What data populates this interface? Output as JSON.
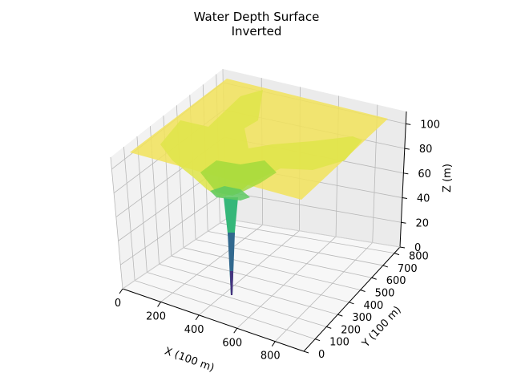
{
  "chart_data": {
    "type": "surface3d",
    "title": "Water Depth Surface",
    "subtitle": "Inverted",
    "xlabel": "X (100 m)",
    "ylabel": "Y (100 m)",
    "zlabel": "Z (m)",
    "xlim": [
      0,
      950
    ],
    "ylim": [
      0,
      850
    ],
    "zlim": [
      0,
      110
    ],
    "xticks": [
      0,
      200,
      400,
      600,
      800
    ],
    "yticks": [
      0,
      100,
      200,
      300,
      400,
      500,
      600,
      700,
      800
    ],
    "zticks": [
      0,
      20,
      40,
      60,
      80,
      100
    ],
    "grid": true,
    "colormap": "viridis",
    "colors": {
      "plane": "#f2e35a",
      "ridge": "#d4e43a",
      "mid": "#5ec962",
      "deep": "#21918c",
      "bottom": "#3b528b",
      "pane": "#f2f2f2",
      "grid": "#b8b8b8"
    },
    "surface": {
      "plane_level": 105,
      "min_depth": 8,
      "min_location": [
        290,
        540
      ]
    }
  }
}
